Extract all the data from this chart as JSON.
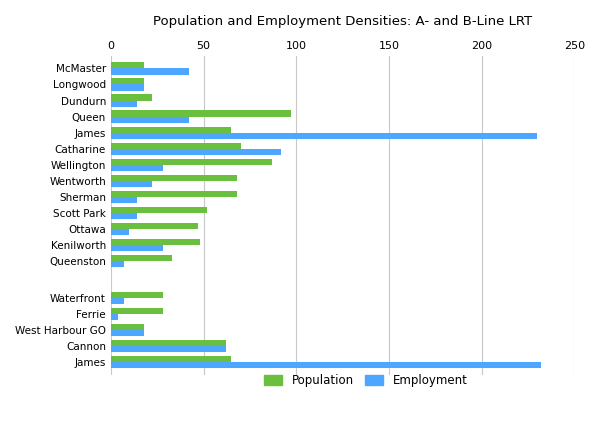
{
  "title": "Population and Employment Densities: A- and B-Line LRT",
  "categories_group1": [
    "McMaster",
    "Longwood",
    "Dundurn",
    "Queen",
    "James",
    "Catharine",
    "Wellington",
    "Wentworth",
    "Sherman",
    "Scott Park",
    "Ottawa",
    "Kenilworth",
    "Queenston"
  ],
  "population_group1": [
    18,
    18,
    22,
    97,
    65,
    70,
    87,
    68,
    68,
    52,
    47,
    48,
    33
  ],
  "employment_group1": [
    42,
    18,
    14,
    42,
    230,
    92,
    28,
    22,
    14,
    14,
    10,
    28,
    7
  ],
  "categories_group2": [
    "Waterfront",
    "Ferrie",
    "West Harbour GO",
    "Cannon",
    "James"
  ],
  "population_group2": [
    28,
    28,
    18,
    62,
    65
  ],
  "employment_group2": [
    7,
    4,
    18,
    62,
    232
  ],
  "pop_color": "#6abf3e",
  "emp_color": "#4da6ff",
  "xlim": [
    0,
    250
  ],
  "xticks": [
    0,
    50,
    100,
    150,
    200,
    250
  ],
  "bar_height": 0.38,
  "background_color": "#ffffff",
  "grid_color": "#c8c8c8"
}
